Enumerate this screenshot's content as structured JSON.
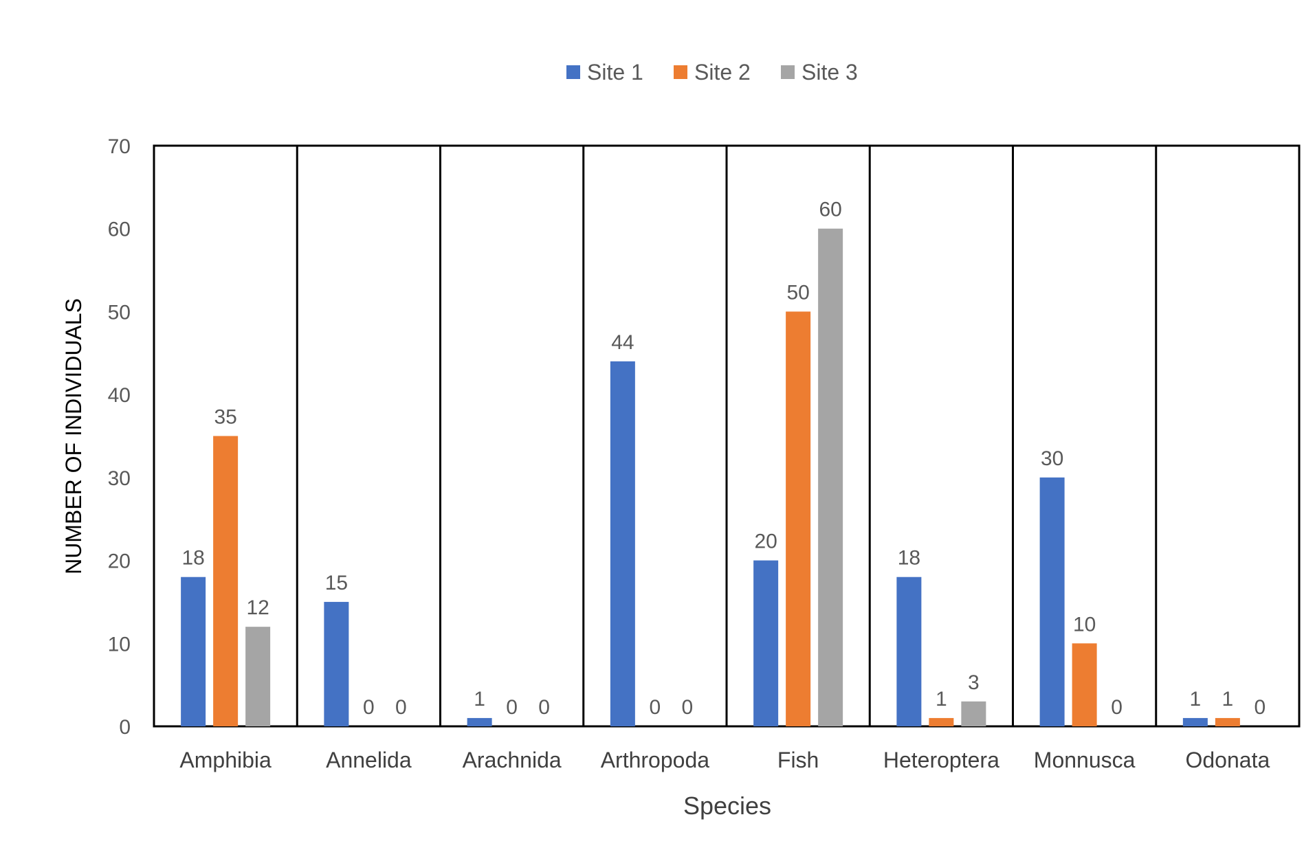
{
  "chart_data": {
    "type": "bar",
    "title": "",
    "xlabel": "Species",
    "ylabel": "NUMBER OF INDIVIDUALS",
    "categories": [
      "Amphibia",
      "Annelida",
      "Arachnida",
      "Arthropoda",
      "Fish",
      "Heteroptera",
      "Monnusca",
      "Odonata"
    ],
    "series": [
      {
        "name": "Site 1",
        "color": "#4472C4",
        "values": [
          18,
          15,
          1,
          44,
          20,
          18,
          30,
          1
        ]
      },
      {
        "name": "Site 2",
        "color": "#ED7D31",
        "values": [
          35,
          0,
          0,
          0,
          50,
          1,
          10,
          1
        ]
      },
      {
        "name": "Site 3",
        "color": "#A5A5A5",
        "values": [
          12,
          0,
          0,
          0,
          60,
          3,
          0,
          0
        ]
      }
    ],
    "ylim": [
      0,
      70
    ],
    "yticks": [
      0,
      10,
      20,
      30,
      40,
      50,
      60,
      70
    ],
    "grid": false,
    "category_dividers": true,
    "legend_position": "top-center",
    "data_labels": true
  }
}
